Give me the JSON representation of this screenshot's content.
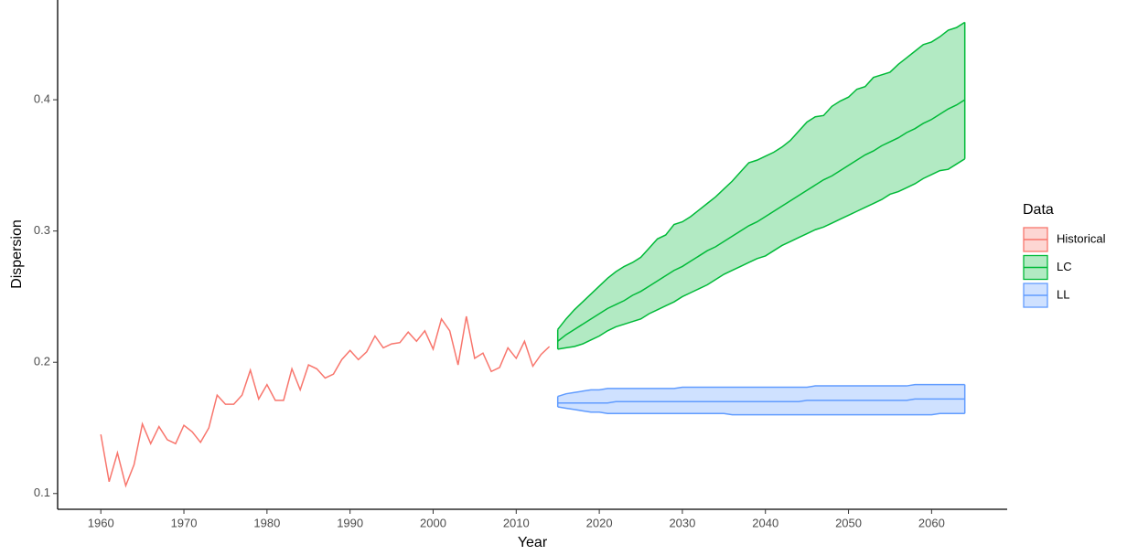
{
  "chart_data": {
    "type": "line",
    "x_label": "Year",
    "y_label": "Dispersion",
    "legend_title": "Data",
    "legend": "right",
    "xlim": [
      1954.8,
      2069.1
    ],
    "ylim": [
      0.088,
      0.476
    ],
    "xticks": [
      1960,
      1970,
      1980,
      1990,
      2000,
      2010,
      2020,
      2030,
      2040,
      2050,
      2060
    ],
    "yticks": [
      0.1,
      0.2,
      0.3,
      0.4
    ],
    "series": [
      {
        "name": "Historical",
        "color": "#F8766D",
        "x": [
          1960,
          1961,
          1962,
          1963,
          1964,
          1965,
          1966,
          1967,
          1968,
          1969,
          1970,
          1971,
          1972,
          1973,
          1974,
          1975,
          1976,
          1977,
          1978,
          1979,
          1980,
          1981,
          1982,
          1983,
          1984,
          1985,
          1986,
          1987,
          1988,
          1989,
          1990,
          1991,
          1992,
          1993,
          1994,
          1995,
          1996,
          1997,
          1998,
          1999,
          2000,
          2001,
          2002,
          2003,
          2004,
          2005,
          2006,
          2007,
          2008,
          2009,
          2010,
          2011,
          2012,
          2013,
          2014
        ],
        "values": [
          0.145,
          0.109,
          0.131,
          0.106,
          0.122,
          0.153,
          0.138,
          0.151,
          0.141,
          0.138,
          0.152,
          0.147,
          0.139,
          0.15,
          0.175,
          0.168,
          0.168,
          0.175,
          0.194,
          0.172,
          0.183,
          0.171,
          0.171,
          0.195,
          0.179,
          0.198,
          0.195,
          0.188,
          0.191,
          0.202,
          0.209,
          0.202,
          0.208,
          0.22,
          0.211,
          0.214,
          0.215,
          0.223,
          0.216,
          0.224,
          0.21,
          0.233,
          0.224,
          0.198,
          0.235,
          0.203,
          0.207,
          0.193,
          0.196,
          0.211,
          0.203,
          0.216,
          0.197,
          0.206,
          0.212
        ]
      },
      {
        "name": "LC",
        "color": "#00BA38",
        "x": [
          2015,
          2016,
          2017,
          2018,
          2019,
          2020,
          2021,
          2022,
          2023,
          2024,
          2025,
          2026,
          2027,
          2028,
          2029,
          2030,
          2031,
          2032,
          2033,
          2034,
          2035,
          2036,
          2037,
          2038,
          2039,
          2040,
          2041,
          2042,
          2043,
          2044,
          2045,
          2046,
          2047,
          2048,
          2049,
          2050,
          2051,
          2052,
          2053,
          2054,
          2055,
          2056,
          2057,
          2058,
          2059,
          2060,
          2061,
          2062,
          2063,
          2064
        ],
        "values": [
          0.216,
          0.221,
          0.225,
          0.229,
          0.233,
          0.237,
          0.241,
          0.244,
          0.247,
          0.251,
          0.254,
          0.258,
          0.262,
          0.266,
          0.27,
          0.273,
          0.277,
          0.281,
          0.285,
          0.288,
          0.292,
          0.296,
          0.3,
          0.304,
          0.307,
          0.311,
          0.315,
          0.319,
          0.323,
          0.327,
          0.331,
          0.335,
          0.339,
          0.342,
          0.346,
          0.35,
          0.354,
          0.358,
          0.361,
          0.365,
          0.368,
          0.371,
          0.375,
          0.378,
          0.382,
          0.385,
          0.389,
          0.393,
          0.396,
          0.4
        ],
        "upper": [
          0.225,
          0.233,
          0.24,
          0.246,
          0.252,
          0.258,
          0.264,
          0.269,
          0.273,
          0.276,
          0.28,
          0.287,
          0.294,
          0.297,
          0.305,
          0.307,
          0.311,
          0.316,
          0.321,
          0.326,
          0.332,
          0.338,
          0.345,
          0.352,
          0.354,
          0.357,
          0.36,
          0.364,
          0.369,
          0.376,
          0.383,
          0.387,
          0.388,
          0.395,
          0.399,
          0.402,
          0.408,
          0.41,
          0.417,
          0.419,
          0.421,
          0.427,
          0.432,
          0.437,
          0.442,
          0.444,
          0.448,
          0.453,
          0.455,
          0.459
        ],
        "lower": [
          0.21,
          0.211,
          0.212,
          0.214,
          0.217,
          0.22,
          0.224,
          0.227,
          0.229,
          0.231,
          0.233,
          0.237,
          0.24,
          0.243,
          0.246,
          0.25,
          0.253,
          0.256,
          0.259,
          0.263,
          0.267,
          0.27,
          0.273,
          0.276,
          0.279,
          0.281,
          0.285,
          0.289,
          0.292,
          0.295,
          0.298,
          0.301,
          0.303,
          0.306,
          0.309,
          0.312,
          0.315,
          0.318,
          0.321,
          0.324,
          0.328,
          0.33,
          0.333,
          0.336,
          0.34,
          0.343,
          0.346,
          0.347,
          0.351,
          0.355
        ]
      },
      {
        "name": "LL",
        "color": "#619CFF",
        "x": [
          2015,
          2016,
          2017,
          2018,
          2019,
          2020,
          2021,
          2022,
          2023,
          2024,
          2025,
          2026,
          2027,
          2028,
          2029,
          2030,
          2031,
          2032,
          2033,
          2034,
          2035,
          2036,
          2037,
          2038,
          2039,
          2040,
          2041,
          2042,
          2043,
          2044,
          2045,
          2046,
          2047,
          2048,
          2049,
          2050,
          2051,
          2052,
          2053,
          2054,
          2055,
          2056,
          2057,
          2058,
          2059,
          2060,
          2061,
          2062,
          2063,
          2064
        ],
        "values": [
          0.169,
          0.169,
          0.169,
          0.169,
          0.169,
          0.169,
          0.169,
          0.17,
          0.17,
          0.17,
          0.17,
          0.17,
          0.17,
          0.17,
          0.17,
          0.17,
          0.17,
          0.17,
          0.17,
          0.17,
          0.17,
          0.17,
          0.17,
          0.17,
          0.17,
          0.17,
          0.17,
          0.17,
          0.17,
          0.17,
          0.171,
          0.171,
          0.171,
          0.171,
          0.171,
          0.171,
          0.171,
          0.171,
          0.171,
          0.171,
          0.171,
          0.171,
          0.171,
          0.172,
          0.172,
          0.172,
          0.172,
          0.172,
          0.172,
          0.172
        ],
        "upper": [
          0.174,
          0.176,
          0.177,
          0.178,
          0.179,
          0.179,
          0.18,
          0.18,
          0.18,
          0.18,
          0.18,
          0.18,
          0.18,
          0.18,
          0.18,
          0.181,
          0.181,
          0.181,
          0.181,
          0.181,
          0.181,
          0.181,
          0.181,
          0.181,
          0.181,
          0.181,
          0.181,
          0.181,
          0.181,
          0.181,
          0.181,
          0.182,
          0.182,
          0.182,
          0.182,
          0.182,
          0.182,
          0.182,
          0.182,
          0.182,
          0.182,
          0.182,
          0.182,
          0.183,
          0.183,
          0.183,
          0.183,
          0.183,
          0.183,
          0.183
        ],
        "lower": [
          0.166,
          0.165,
          0.164,
          0.163,
          0.162,
          0.162,
          0.161,
          0.161,
          0.161,
          0.161,
          0.161,
          0.161,
          0.161,
          0.161,
          0.161,
          0.161,
          0.161,
          0.161,
          0.161,
          0.161,
          0.161,
          0.16,
          0.16,
          0.16,
          0.16,
          0.16,
          0.16,
          0.16,
          0.16,
          0.16,
          0.16,
          0.16,
          0.16,
          0.16,
          0.16,
          0.16,
          0.16,
          0.16,
          0.16,
          0.16,
          0.16,
          0.16,
          0.16,
          0.16,
          0.16,
          0.16,
          0.161,
          0.161,
          0.161,
          0.161
        ]
      }
    ]
  }
}
